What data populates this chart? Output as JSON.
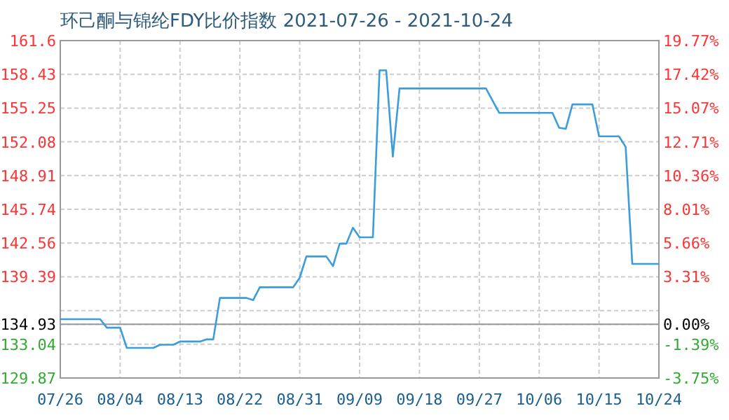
{
  "chart_data": {
    "type": "line",
    "title": "环己酮与锦纶FDY比价指数 2021-07-26 - 2021-10-24",
    "x": [
      "2021-07-26",
      "2021-08-01",
      "2021-08-02",
      "2021-08-04",
      "2021-08-05",
      "2021-08-09",
      "2021-08-10",
      "2021-08-12",
      "2021-08-13",
      "2021-08-16",
      "2021-08-17",
      "2021-08-18",
      "2021-08-19",
      "2021-08-23",
      "2021-08-24",
      "2021-08-25",
      "2021-08-30",
      "2021-08-31",
      "2021-09-01",
      "2021-09-04",
      "2021-09-05",
      "2021-09-06",
      "2021-09-07",
      "2021-09-08",
      "2021-09-09",
      "2021-09-11",
      "2021-09-12",
      "2021-09-13",
      "2021-09-14",
      "2021-09-15",
      "2021-09-28",
      "2021-09-30",
      "2021-10-08",
      "2021-10-09",
      "2021-10-10",
      "2021-10-11",
      "2021-10-14",
      "2021-10-15",
      "2021-10-18",
      "2021-10-19",
      "2021-10-20",
      "2021-10-24"
    ],
    "series": [
      {
        "color": "#3b9ddb",
        "values": [
          135.4,
          135.4,
          134.6,
          134.6,
          132.7,
          132.7,
          133.0,
          133.0,
          133.3,
          133.3,
          133.5,
          133.5,
          137.4,
          137.4,
          137.2,
          138.4,
          138.4,
          139.3,
          141.3,
          141.3,
          140.4,
          142.5,
          142.5,
          144.0,
          143.1,
          143.1,
          158.8,
          158.8,
          150.7,
          157.1,
          157.1,
          154.8,
          154.8,
          153.4,
          153.3,
          155.6,
          155.6,
          152.6,
          152.6,
          151.6,
          140.6,
          140.6
        ]
      }
    ],
    "xlim": [
      "2021-07-26",
      "2021-10-24"
    ],
    "xticks": [
      {
        "value": "2021-07-26",
        "label": "07/26"
      },
      {
        "value": "2021-08-04",
        "label": "08/04"
      },
      {
        "value": "2021-08-13",
        "label": "08/13"
      },
      {
        "value": "2021-08-22",
        "label": "08/22"
      },
      {
        "value": "2021-08-31",
        "label": "08/31"
      },
      {
        "value": "2021-09-09",
        "label": "09/09"
      },
      {
        "value": "2021-09-18",
        "label": "09/18"
      },
      {
        "value": "2021-09-27",
        "label": "09/27"
      },
      {
        "value": "2021-10-06",
        "label": "10/06"
      },
      {
        "value": "2021-10-15",
        "label": "10/15"
      },
      {
        "value": "2021-10-24",
        "label": "10/24"
      }
    ],
    "ylim": [
      129.87,
      161.6
    ],
    "yticks": [
      129.87,
      133.04,
      134.93,
      {
        "value": 136.21,
        "label": null
      },
      139.39,
      142.56,
      145.74,
      148.91,
      152.08,
      155.25,
      158.43,
      161.6
    ],
    "y2lim": [
      -3.75,
      19.77
    ],
    "y2ticks": [
      {
        "value": -3.75,
        "label": "-3.75%"
      },
      {
        "value": -1.39,
        "label": "-1.39%"
      },
      {
        "value": 0,
        "label": "0.00%"
      },
      {
        "value": 3.31,
        "label": "3.31%"
      },
      {
        "value": 5.66,
        "label": "5.66%"
      },
      {
        "value": 8.01,
        "label": "8.01%"
      },
      {
        "value": 10.36,
        "label": "10.36%"
      },
      {
        "value": 12.71,
        "label": "12.71%"
      },
      {
        "value": 15.07,
        "label": "15.07%"
      },
      {
        "value": 17.42,
        "label": "17.42%"
      },
      {
        "value": 19.77,
        "label": "19.77%"
      }
    ],
    "ref_lines": [
      {
        "axis": "y",
        "value": 134.93,
        "color": "#999999"
      }
    ],
    "grid": true
  }
}
